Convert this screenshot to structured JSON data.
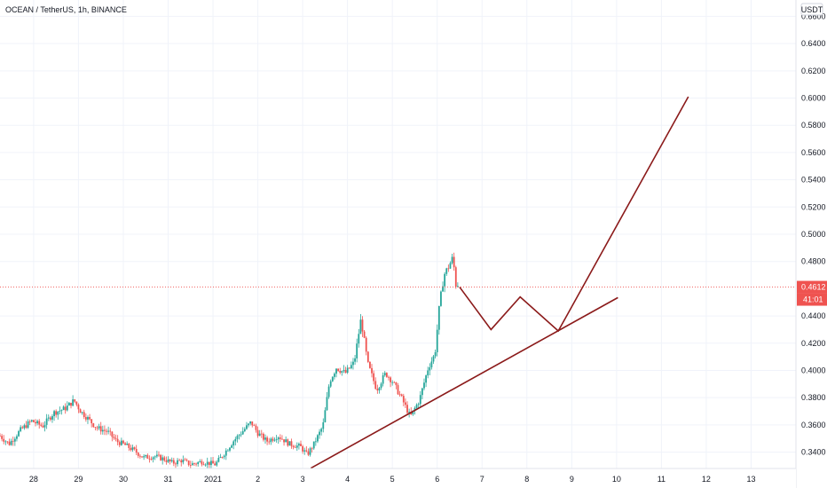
{
  "chart_data": {
    "type": "candlestick",
    "title": "OCEAN / TetherUS, 1h, BINANCE",
    "currency": "USDT",
    "ylim": [
      0.328,
      0.672
    ],
    "y_ticks": [
      "0.6600",
      "0.6400",
      "0.6200",
      "0.6000",
      "0.5800",
      "0.5600",
      "0.5400",
      "0.5200",
      "0.5000",
      "0.4800",
      "0.4400",
      "0.4200",
      "0.4000",
      "0.3800",
      "0.3600",
      "0.3400"
    ],
    "x_ticks": [
      {
        "label": "28",
        "day": -3
      },
      {
        "label": "29",
        "day": -2
      },
      {
        "label": "30",
        "day": -1
      },
      {
        "label": "31",
        "day": 0
      },
      {
        "label": "2021",
        "day": 1
      },
      {
        "label": "2",
        "day": 2
      },
      {
        "label": "3",
        "day": 3
      },
      {
        "label": "4",
        "day": 4
      },
      {
        "label": "5",
        "day": 5
      },
      {
        "label": "6",
        "day": 6
      },
      {
        "label": "7",
        "day": 7
      },
      {
        "label": "8",
        "day": 8
      },
      {
        "label": "9",
        "day": 9
      },
      {
        "label": "10",
        "day": 10
      },
      {
        "label": "11",
        "day": 11
      },
      {
        "label": "12",
        "day": 12
      },
      {
        "label": "13",
        "day": 13
      }
    ],
    "xlim_days": [
      -3.75,
      14.0
    ],
    "current_price": "0.4612",
    "countdown": "41:01",
    "price_path": [
      [
        -3.75,
        0.352
      ],
      [
        -3.55,
        0.346
      ],
      [
        -3.3,
        0.356
      ],
      [
        -3.05,
        0.363
      ],
      [
        -2.8,
        0.359
      ],
      [
        -2.55,
        0.369
      ],
      [
        -2.3,
        0.372
      ],
      [
        -2.1,
        0.378
      ],
      [
        -1.95,
        0.37
      ],
      [
        -1.8,
        0.365
      ],
      [
        -1.6,
        0.358
      ],
      [
        -1.35,
        0.355
      ],
      [
        -1.15,
        0.348
      ],
      [
        -0.95,
        0.345
      ],
      [
        -0.75,
        0.341
      ],
      [
        -0.55,
        0.336
      ],
      [
        -0.3,
        0.337
      ],
      [
        -0.1,
        0.335
      ],
      [
        0.1,
        0.332
      ],
      [
        0.3,
        0.334
      ],
      [
        0.5,
        0.331
      ],
      [
        0.75,
        0.333
      ],
      [
        1.05,
        0.331
      ],
      [
        1.2,
        0.337
      ],
      [
        1.45,
        0.348
      ],
      [
        1.65,
        0.355
      ],
      [
        1.85,
        0.362
      ],
      [
        2.0,
        0.354
      ],
      [
        2.2,
        0.348
      ],
      [
        2.45,
        0.352
      ],
      [
        2.7,
        0.346
      ],
      [
        2.95,
        0.344
      ],
      [
        3.1,
        0.338
      ],
      [
        3.25,
        0.346
      ],
      [
        3.45,
        0.359
      ],
      [
        3.6,
        0.392
      ],
      [
        3.75,
        0.402
      ],
      [
        3.95,
        0.398
      ],
      [
        4.15,
        0.406
      ],
      [
        4.3,
        0.438
      ],
      [
        4.45,
        0.405
      ],
      [
        4.65,
        0.386
      ],
      [
        4.85,
        0.398
      ],
      [
        5.0,
        0.392
      ],
      [
        5.2,
        0.38
      ],
      [
        5.4,
        0.366
      ],
      [
        5.6,
        0.378
      ],
      [
        5.8,
        0.402
      ],
      [
        5.95,
        0.412
      ],
      [
        6.05,
        0.448
      ],
      [
        6.15,
        0.47
      ],
      [
        6.25,
        0.476
      ],
      [
        6.35,
        0.483
      ],
      [
        6.42,
        0.462
      ],
      [
        6.48,
        0.464
      ]
    ],
    "drawings": [
      {
        "name": "support-trendline",
        "points": [
          [
            3.18,
            0.3282
          ],
          [
            10.03,
            0.4535
          ]
        ]
      },
      {
        "name": "projection-path",
        "points": [
          [
            6.5,
            0.4612
          ],
          [
            7.2,
            0.43
          ],
          [
            7.85,
            0.454
          ],
          [
            8.7,
            0.429
          ],
          [
            11.6,
            0.601
          ]
        ]
      }
    ],
    "colors": {
      "up": "#26a69a",
      "down": "#ef5350",
      "drawing": "#8b1a1a",
      "price_tag": "#ef5350",
      "grid": "#f0f3fa"
    }
  }
}
